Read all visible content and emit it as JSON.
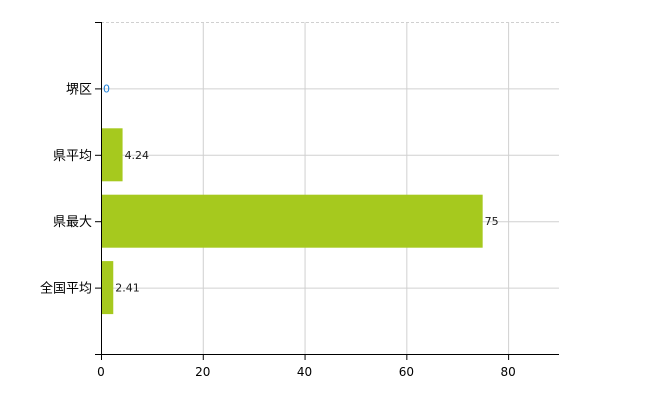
{
  "chart_data": {
    "type": "bar",
    "orientation": "horizontal",
    "categories": [
      "堺区",
      "県平均",
      "県最大",
      "全国平均"
    ],
    "values": [
      0,
      4.24,
      75,
      2.41
    ],
    "value_labels": [
      "0",
      "4.24",
      "75",
      "2.41"
    ],
    "xlim": [
      0,
      90
    ],
    "x_ticks": [
      0,
      20,
      40,
      60,
      80
    ],
    "x_tick_labels": [
      "0",
      "20",
      "40",
      "60",
      "80"
    ],
    "grid": true,
    "legend": "none",
    "colors": {
      "bar": "#a6c91e",
      "label": "#1a1a1a",
      "zero_label": "#1e7fd6",
      "grid": "#d0d0d0",
      "axis": "#000000"
    }
  }
}
